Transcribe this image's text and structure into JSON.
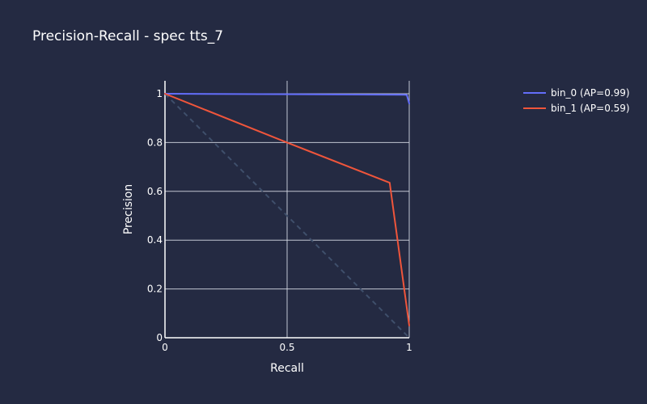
{
  "chart_data": {
    "type": "line",
    "title": "Precision-Recall - spec tts_7",
    "xlabel": "Recall",
    "ylabel": "Precision",
    "xlim": [
      0,
      1
    ],
    "ylim": [
      0,
      1
    ],
    "x_ticks": [
      0,
      0.5,
      1
    ],
    "x_tick_labels": [
      "0",
      "0.5",
      "1"
    ],
    "y_ticks": [
      0,
      0.2,
      0.4,
      0.6,
      0.8,
      1
    ],
    "y_tick_labels": [
      "0",
      "0.2",
      "0.4",
      "0.6",
      "0.8",
      "1"
    ],
    "grid": true,
    "legend_position": "top-right",
    "baseline": {
      "x": [
        0,
        1
      ],
      "y": [
        1,
        0
      ],
      "style": "dashed",
      "color": "#3f4f6b"
    },
    "series": [
      {
        "name": "bin_0 (AP=0.99)",
        "color": "#636efa",
        "x": [
          0,
          0.5,
          0.98,
          0.99,
          1.0
        ],
        "y": [
          1.0,
          0.998,
          0.996,
          0.995,
          0.96
        ]
      },
      {
        "name": "bin_1 (AP=0.59)",
        "color": "#ef553b",
        "x": [
          0,
          0.5,
          0.92,
          1.0
        ],
        "y": [
          1.0,
          0.8,
          0.635,
          0.05
        ]
      }
    ]
  },
  "colors": {
    "background": "#242a42",
    "grid": "#dde1ea",
    "text": "#ffffff"
  }
}
